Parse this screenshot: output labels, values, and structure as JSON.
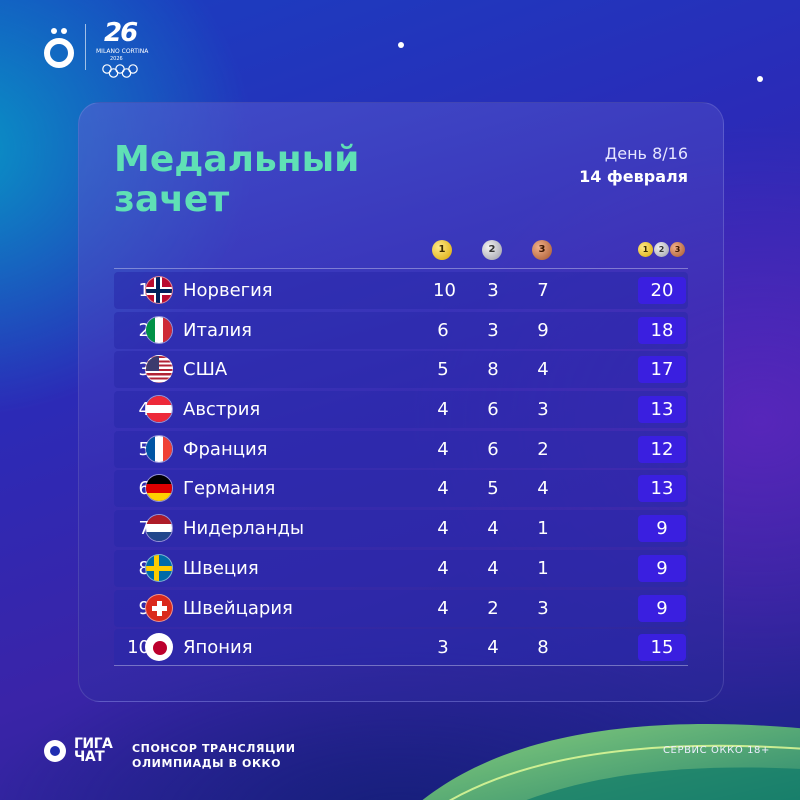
{
  "header": {
    "olympic_logo_text": "MILANO CORTINA",
    "olympic_logo_year": "2026",
    "olympic_logo_number": "26"
  },
  "title": {
    "line1": "Медальный",
    "line2": "зачет"
  },
  "day": {
    "counter": "День 8/16",
    "date": "14 февраля"
  },
  "columns": {
    "gold": "1",
    "silver": "2",
    "bronze": "3"
  },
  "colors": {
    "title": "#5fe0b5",
    "total_badge": "#3a1fe0",
    "row_bg": "#2a2aa8"
  },
  "rows": [
    {
      "rank": "1",
      "country": "Норвегия",
      "flag": "norway-flag",
      "gold": "10",
      "silver": "3",
      "bronze": "7",
      "total": "20"
    },
    {
      "rank": "2",
      "country": "Италия",
      "flag": "italy-flag",
      "gold": "6",
      "silver": "3",
      "bronze": "9",
      "total": "18"
    },
    {
      "rank": "3",
      "country": "США",
      "flag": "usa-flag",
      "gold": "5",
      "silver": "8",
      "bronze": "4",
      "total": "17"
    },
    {
      "rank": "4",
      "country": "Австрия",
      "flag": "austria-flag",
      "gold": "4",
      "silver": "6",
      "bronze": "3",
      "total": "13"
    },
    {
      "rank": "5",
      "country": "Франция",
      "flag": "france-flag",
      "gold": "4",
      "silver": "6",
      "bronze": "2",
      "total": "12"
    },
    {
      "rank": "6",
      "country": "Германия",
      "flag": "germany-flag",
      "gold": "4",
      "silver": "5",
      "bronze": "4",
      "total": "13"
    },
    {
      "rank": "7",
      "country": "Нидерланды",
      "flag": "netherlands-flag",
      "gold": "4",
      "silver": "4",
      "bronze": "1",
      "total": "9"
    },
    {
      "rank": "8",
      "country": "Швеция",
      "flag": "sweden-flag",
      "gold": "4",
      "silver": "4",
      "bronze": "1",
      "total": "9"
    },
    {
      "rank": "9",
      "country": "Швейцария",
      "flag": "switzerland-flag",
      "gold": "4",
      "silver": "2",
      "bronze": "3",
      "total": "9"
    },
    {
      "rank": "10",
      "country": "Япония",
      "flag": "japan-flag",
      "gold": "3",
      "silver": "4",
      "bronze": "8",
      "total": "15"
    }
  ],
  "footer": {
    "brand_line1": "ГИГА",
    "brand_line2": "ЧАТ",
    "sponsor_line1": "СПОНСОР ТРАНСЛЯЦИИ",
    "sponsor_line2": "ОЛИМПИАДЫ В ОККО",
    "service": "СЕРВИС ОККО 18+"
  }
}
